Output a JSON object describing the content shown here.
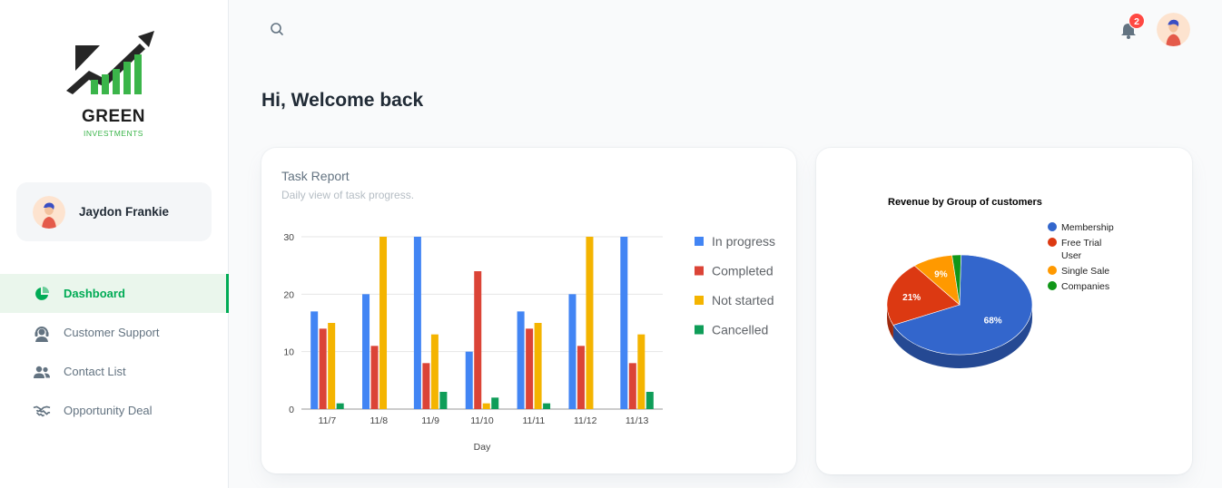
{
  "brand": {
    "name": "GREEN",
    "subtitle": "INVESTMENTS",
    "colors": {
      "green": "#3bb54a",
      "dark": "#1e1e1e"
    }
  },
  "user": {
    "name": "Jaydon Frankie"
  },
  "nav": {
    "items": [
      {
        "label": "Dashboard",
        "icon": "pie-chart-icon",
        "active": true
      },
      {
        "label": "Customer Support",
        "icon": "headset-icon",
        "active": false
      },
      {
        "label": "Contact List",
        "icon": "people-icon",
        "active": false
      },
      {
        "label": "Opportunity Deal",
        "icon": "handshake-icon",
        "active": false
      }
    ]
  },
  "header": {
    "notifications_count": "2",
    "search_icon": "search-icon",
    "bell_icon": "bell-icon"
  },
  "welcome": "Hi, Welcome back",
  "task_report": {
    "title": "Task Report",
    "subtitle": "Daily view of task progress."
  },
  "revenue": {
    "title": "Revenue by Group of customers"
  },
  "chart_data": [
    {
      "type": "bar",
      "categories": [
        "11/7",
        "11/8",
        "11/9",
        "11/10",
        "11/11",
        "11/12",
        "11/13"
      ],
      "series": [
        {
          "name": "In progress",
          "color": "#4285f4",
          "values": [
            17,
            20,
            30,
            10,
            17,
            20,
            30
          ]
        },
        {
          "name": "Completed",
          "color": "#db4437",
          "values": [
            14,
            11,
            8,
            24,
            14,
            11,
            8
          ]
        },
        {
          "name": "Not started",
          "color": "#f4b400",
          "values": [
            15,
            30,
            13,
            1,
            15,
            30,
            13
          ]
        },
        {
          "name": "Cancelled",
          "color": "#0f9d58",
          "values": [
            1,
            0,
            3,
            2,
            1,
            0,
            3
          ]
        }
      ],
      "xlabel": "Day",
      "ylabel": "",
      "ylim": [
        0,
        30
      ],
      "yticks": [
        0,
        10,
        20,
        30
      ],
      "grid": true,
      "legend": "right"
    },
    {
      "type": "pie",
      "title": "Revenue by Group of customers",
      "labels": [
        "Membership",
        "Free Trial User",
        "Single Sale",
        "Companies"
      ],
      "values": [
        68,
        21,
        9,
        2
      ],
      "display_labels": [
        "68%",
        "21%",
        "9%",
        ""
      ],
      "colors": [
        "#3366cc",
        "#dc3912",
        "#ff9900",
        "#109618"
      ],
      "legend": "right",
      "style": "3d"
    }
  ]
}
